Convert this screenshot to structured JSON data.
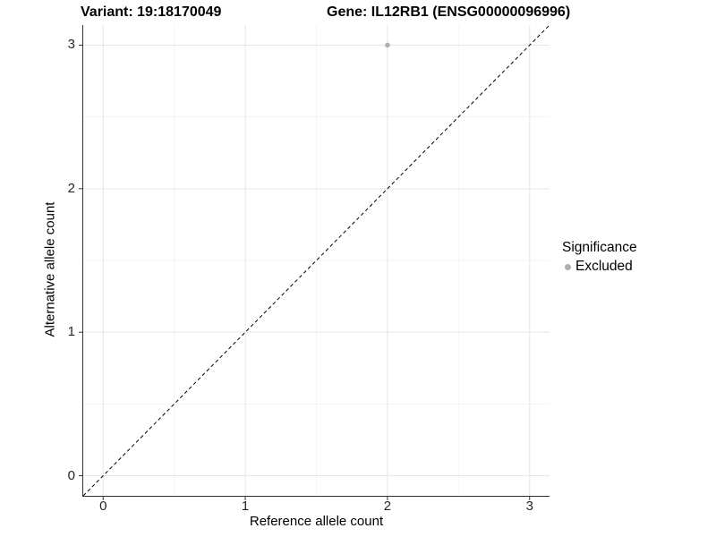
{
  "titles": {
    "left": "Variant: 19:18170049",
    "right": "Gene: IL12RB1 (ENSG00000096996)"
  },
  "axes": {
    "x_label": "Reference allele count",
    "y_label": "Alternative allele count"
  },
  "legend": {
    "title": "Significance",
    "items": [
      {
        "label": "Excluded",
        "color": "#b0b0b0"
      }
    ]
  },
  "colors": {
    "major_grid": "#e6e6e6",
    "minor_grid": "#f3f3f3",
    "axis_line": "#333333",
    "tick_mark": "#333333",
    "tick_label": "#262626",
    "identity_line": "#000000",
    "point": "#b0b0b0"
  },
  "chart_data": {
    "type": "scatter",
    "title_left": "Variant: 19:18170049",
    "title_right": "Gene: IL12RB1 (ENSG00000096996)",
    "xlabel": "Reference allele count",
    "ylabel": "Alternative allele count",
    "xlim": [
      -0.14,
      3.14
    ],
    "ylim": [
      -0.14,
      3.14
    ],
    "x_ticks": [
      0,
      1,
      2,
      3
    ],
    "y_ticks": [
      0,
      1,
      2,
      3
    ],
    "x_minor_ticks": [
      0.5,
      1.5,
      2.5
    ],
    "y_minor_ticks": [
      0.5,
      1.5,
      2.5
    ],
    "grid": true,
    "legend_position": "right",
    "series": [
      {
        "name": "Excluded",
        "color": "#b0b0b0",
        "points": [
          {
            "x": 2,
            "y": 3
          }
        ]
      }
    ],
    "reference_line": {
      "kind": "identity",
      "slope": 1,
      "intercept": 0,
      "style": "dashed"
    }
  }
}
